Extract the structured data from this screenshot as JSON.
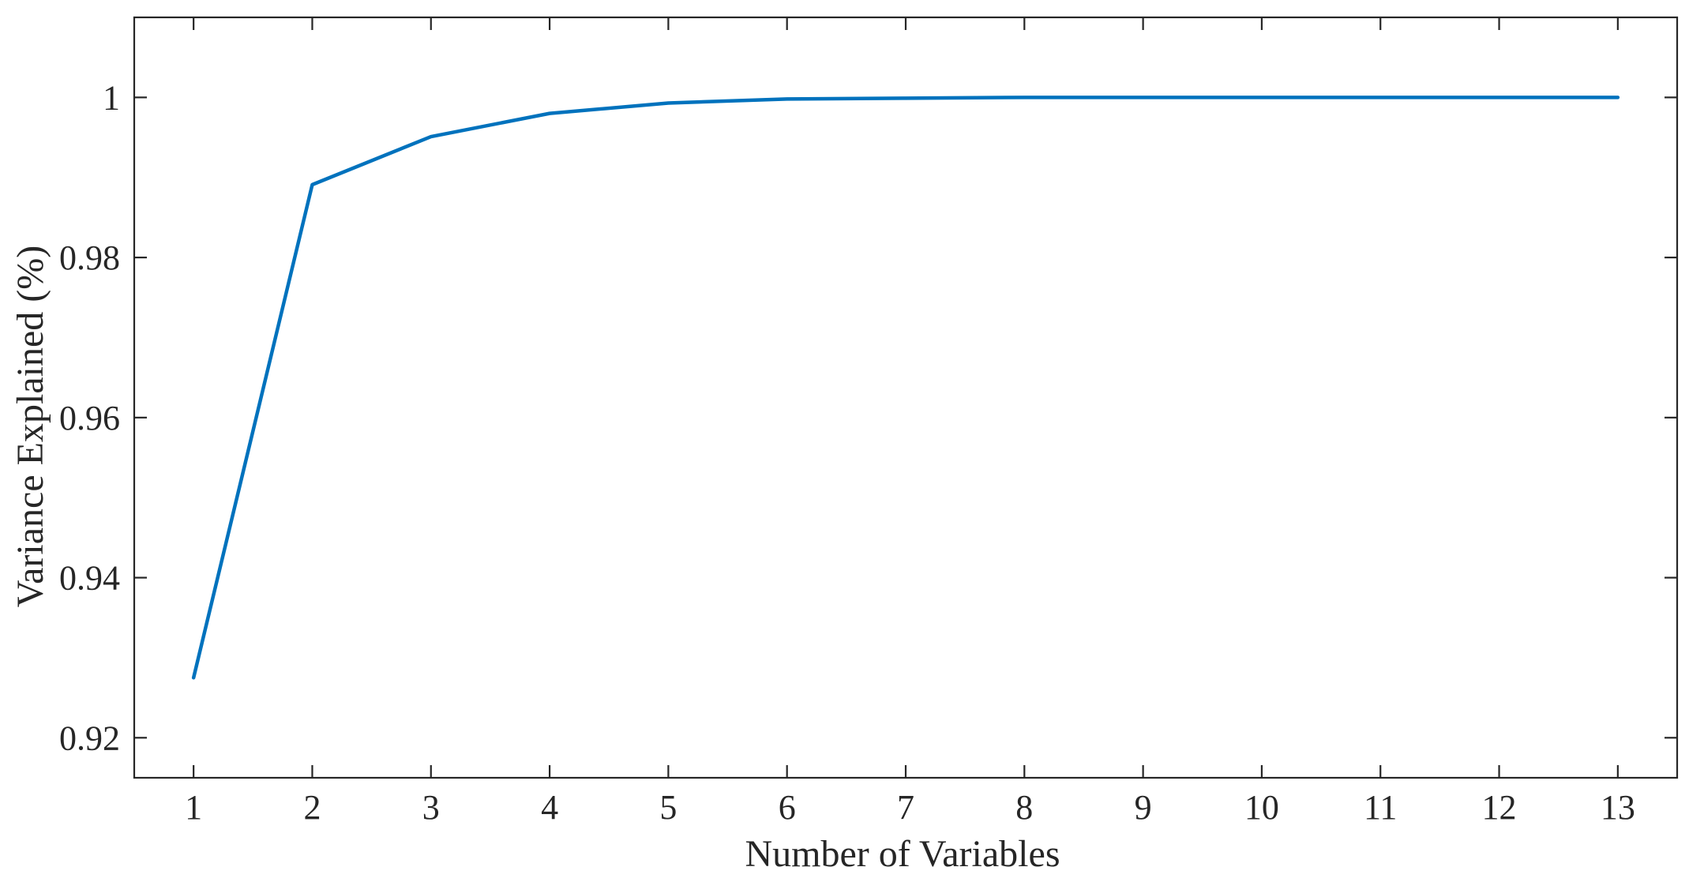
{
  "chart_data": {
    "type": "line",
    "title": "",
    "xlabel": "Number of Variables",
    "ylabel": "Variance Explained (%)",
    "x": [
      1,
      2,
      3,
      4,
      5,
      6,
      7,
      8,
      9,
      10,
      11,
      12,
      13
    ],
    "series": [
      {
        "values": [
          0.9275,
          0.9891,
          0.9951,
          0.998,
          0.9993,
          0.9998,
          0.9999,
          1.0,
          1.0,
          1.0,
          1.0,
          1.0,
          1.0
        ],
        "color": "#0072BD"
      }
    ],
    "xlim": [
      0.5,
      13.5
    ],
    "ylim": [
      0.915,
      1.01
    ],
    "xticks": [
      1,
      2,
      3,
      4,
      5,
      6,
      7,
      8,
      9,
      10,
      11,
      12,
      13
    ],
    "xtick_labels": [
      "1",
      "2",
      "3",
      "4",
      "5",
      "6",
      "7",
      "8",
      "9",
      "10",
      "11",
      "12",
      "13"
    ],
    "yticks": [
      0.92,
      0.94,
      0.96,
      0.98,
      1.0
    ],
    "ytick_labels": [
      "0.92",
      "0.94",
      "0.96",
      "0.98",
      "1"
    ],
    "grid": false,
    "legend": "none"
  }
}
